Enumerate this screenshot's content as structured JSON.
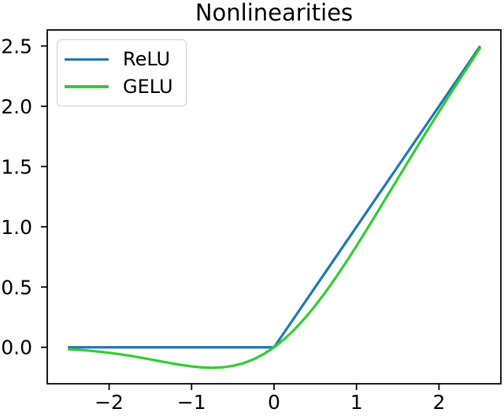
{
  "figure": {
    "background": "#ffffff",
    "text_color": "#000000",
    "spine_color": "#000000"
  },
  "chart_data": {
    "type": "line",
    "title": "Nonlinearities",
    "xlabel": "",
    "ylabel": "",
    "grid": false,
    "legend_position": "upper left",
    "xlim": [
      -2.75,
      2.75
    ],
    "ylim": [
      -0.3025,
      2.6335
    ],
    "xticks": {
      "values": [
        -2,
        -1,
        0,
        1,
        2
      ],
      "labels": [
        "−2",
        "−1",
        "0",
        "1",
        "2"
      ]
    },
    "yticks": {
      "values": [
        0,
        0.5,
        1,
        1.5,
        2,
        2.5
      ],
      "labels": [
        "0.0",
        "0.5",
        "1.0",
        "1.5",
        "2.0",
        "2.5"
      ]
    },
    "x": [
      -2.5,
      -2.375,
      -2.25,
      -2.125,
      -2,
      -1.875,
      -1.75,
      -1.625,
      -1.5,
      -1.375,
      -1.25,
      -1.125,
      -1,
      -0.875,
      -0.75,
      -0.625,
      -0.5,
      -0.375,
      -0.25,
      -0.125,
      0,
      0.125,
      0.25,
      0.375,
      0.5,
      0.625,
      0.75,
      0.875,
      1,
      1.125,
      1.25,
      1.375,
      1.5,
      1.625,
      1.75,
      1.875,
      2,
      2.125,
      2.25,
      2.375,
      2.5
    ],
    "series": [
      {
        "name": "ReLU",
        "color": "#1f77b4",
        "values": [
          0,
          0,
          0,
          0,
          0,
          0,
          0,
          0,
          0,
          0,
          0,
          0,
          0,
          0,
          0,
          0,
          0,
          0,
          0,
          0,
          0,
          0.125,
          0.25,
          0.375,
          0.5,
          0.625,
          0.75,
          0.875,
          1,
          1.125,
          1.25,
          1.375,
          1.5,
          1.625,
          1.75,
          1.875,
          2,
          2.125,
          2.25,
          2.375,
          2.5
        ]
      },
      {
        "name": "GELU",
        "color": "#32cd32",
        "values": [
          -0.0155,
          -0.0209,
          -0.0275,
          -0.0357,
          -0.0455,
          -0.057,
          -0.0701,
          -0.0846,
          -0.1002,
          -0.1163,
          -0.1321,
          -0.1466,
          -0.1587,
          -0.1669,
          -0.17,
          -0.1662,
          -0.1543,
          -0.1327,
          -0.1003,
          -0.0563,
          0,
          0.0687,
          0.1497,
          0.2423,
          0.3457,
          0.4588,
          0.58,
          0.7081,
          0.8413,
          0.9784,
          1.1179,
          1.2587,
          1.3998,
          1.5404,
          1.6799,
          1.818,
          1.9545,
          2.0893,
          2.2225,
          2.3541,
          2.4845
        ]
      }
    ]
  }
}
